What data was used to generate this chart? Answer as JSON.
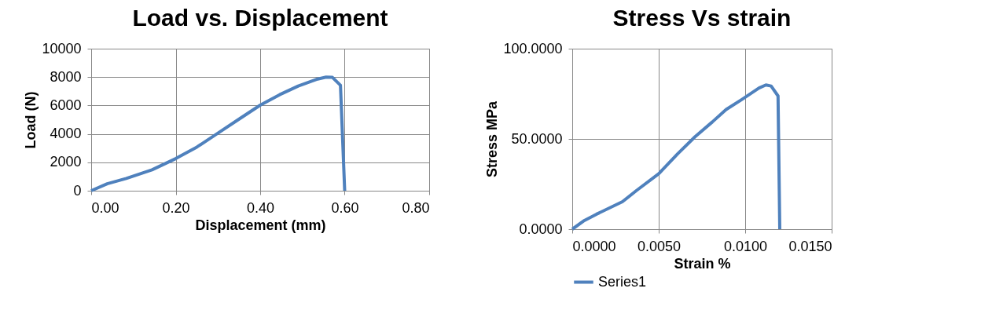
{
  "chart_data": [
    {
      "type": "line",
      "title": "Load vs. Displacement",
      "xlabel": "Displacement (mm)",
      "ylabel": "Load (N)",
      "x": [
        0,
        0.038,
        0.083,
        0.144,
        0.2,
        0.25,
        0.3,
        0.35,
        0.4,
        0.446,
        0.49,
        0.536,
        0.556,
        0.571,
        0.59,
        0.6
      ],
      "series": [
        {
          "color": "#4f81bd",
          "values": [
            0,
            490,
            860,
            1470,
            2260,
            3070,
            4050,
            5040,
            6020,
            6760,
            7370,
            7860,
            8000,
            7980,
            7420,
            0
          ]
        }
      ],
      "xlim": [
        0,
        0.8
      ],
      "xticks": [
        {
          "value": 0,
          "label": "0.00"
        },
        {
          "value": 0.2,
          "label": "0.20"
        },
        {
          "value": 0.4,
          "label": "0.40"
        },
        {
          "value": 0.6,
          "label": "0.60"
        },
        {
          "value": 0.8,
          "label": "0.80"
        }
      ],
      "ylim": [
        0,
        10000
      ],
      "yticks": [
        0,
        2000,
        4000,
        6000,
        8000,
        10000
      ],
      "grid": true,
      "legend": false
    },
    {
      "type": "line",
      "title": "Stress Vs strain",
      "xlabel": "Strain %",
      "ylabel": "Stress MPa",
      "x": [
        0,
        0.0007,
        0.0014,
        0.0029,
        0.0037,
        0.005,
        0.0061,
        0.0071,
        0.0081,
        0.0089,
        0.0098,
        0.0108,
        0.0112,
        0.0115,
        0.0119,
        0.012
      ],
      "series": [
        {
          "name": "Series1",
          "color": "#4f81bd",
          "values": [
            0,
            4.8,
            8.3,
            15.2,
            21.3,
            30.7,
            41.8,
            51.2,
            59.4,
            66.3,
            71.8,
            78.2,
            79.9,
            79.3,
            73.8,
            0
          ]
        }
      ],
      "xlim": [
        0,
        0.015
      ],
      "xticks": [
        {
          "value": 0,
          "label": "0.0000"
        },
        {
          "value": 0.005,
          "label": "0.0050"
        },
        {
          "value": 0.01,
          "label": "0.0100"
        },
        {
          "value": 0.015,
          "label": "0.0150"
        }
      ],
      "ylim": [
        0,
        100
      ],
      "yticks": [
        {
          "value": 0,
          "label": "0.0000"
        },
        {
          "value": 50,
          "label": "50.0000"
        },
        {
          "value": 100,
          "label": "100.0000"
        }
      ],
      "grid": true,
      "legend": "bottom"
    }
  ]
}
